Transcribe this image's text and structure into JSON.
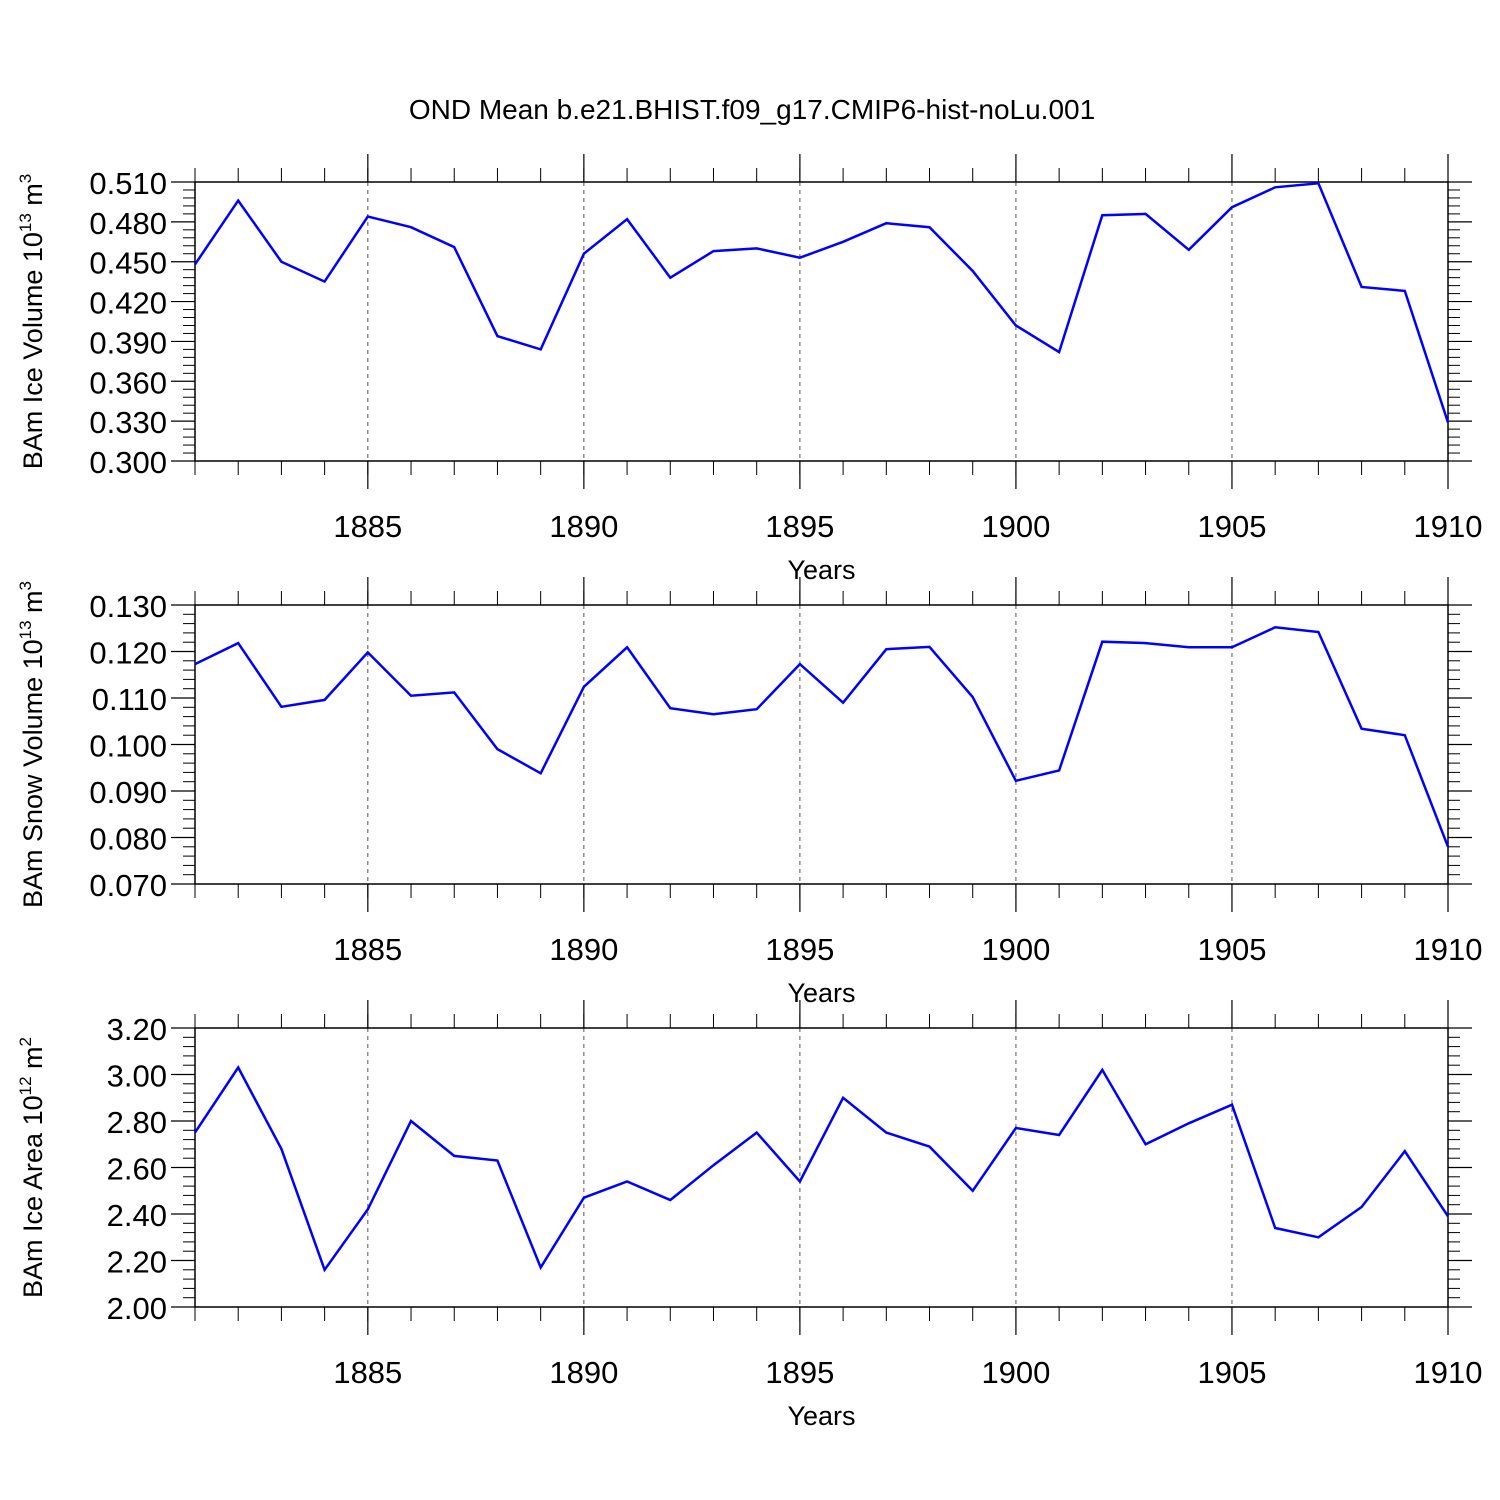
{
  "title": "OND Mean b.e21.BHIST.f09_g17.CMIP6-hist-noLu.001",
  "colors": {
    "line": "#0000ff",
    "axis": "#000000",
    "grid": "#555555"
  },
  "chart_data": [
    {
      "type": "line",
      "ylabel_main": "BAm Ice Volume 10",
      "ylabel_exp": "13",
      "ylabel_unit": "m",
      "ylabel_unit_exp": "3",
      "xlabel": "Years",
      "xlim": [
        1881,
        1910
      ],
      "ylim": [
        0.3,
        0.51
      ],
      "yticks": [
        "0.300",
        "0.330",
        "0.360",
        "0.390",
        "0.420",
        "0.450",
        "0.480",
        "0.510"
      ],
      "ytick_values": [
        0.3,
        0.33,
        0.36,
        0.39,
        0.42,
        0.45,
        0.48,
        0.51
      ],
      "xticks": [
        "1885",
        "1890",
        "1895",
        "1900",
        "1905",
        "1910"
      ],
      "xtick_values": [
        1885,
        1890,
        1895,
        1900,
        1905,
        1910
      ],
      "x": [
        1881,
        1882,
        1883,
        1884,
        1885,
        1886,
        1887,
        1888,
        1889,
        1890,
        1891,
        1892,
        1893,
        1894,
        1895,
        1896,
        1897,
        1898,
        1899,
        1900,
        1901,
        1902,
        1903,
        1904,
        1905,
        1906,
        1907,
        1908,
        1909,
        1910
      ],
      "series": [
        {
          "name": "Ice Volume",
          "values": [
            0.448,
            0.496,
            0.45,
            0.435,
            0.484,
            0.476,
            0.461,
            0.394,
            0.384,
            0.456,
            0.482,
            0.438,
            0.458,
            0.46,
            0.453,
            0.465,
            0.479,
            0.476,
            0.443,
            0.402,
            0.382,
            0.485,
            0.486,
            0.459,
            0.491,
            0.506,
            0.509,
            0.431,
            0.428,
            0.329
          ]
        }
      ]
    },
    {
      "type": "line",
      "ylabel_main": "BAm Snow Volume 10",
      "ylabel_exp": "13",
      "ylabel_unit": "m",
      "ylabel_unit_exp": "3",
      "xlabel": "Years",
      "xlim": [
        1881,
        1910
      ],
      "ylim": [
        0.07,
        0.13
      ],
      "yticks": [
        "0.070",
        "0.080",
        "0.090",
        "0.100",
        "0.110",
        "0.120",
        "0.130"
      ],
      "ytick_values": [
        0.07,
        0.08,
        0.09,
        0.1,
        0.11,
        0.12,
        0.13
      ],
      "xticks": [
        "1885",
        "1890",
        "1895",
        "1900",
        "1905",
        "1910"
      ],
      "xtick_values": [
        1885,
        1890,
        1895,
        1900,
        1905,
        1910
      ],
      "x": [
        1881,
        1882,
        1883,
        1884,
        1885,
        1886,
        1887,
        1888,
        1889,
        1890,
        1891,
        1892,
        1893,
        1894,
        1895,
        1896,
        1897,
        1898,
        1899,
        1900,
        1901,
        1902,
        1903,
        1904,
        1905,
        1906,
        1907,
        1908,
        1909,
        1910
      ],
      "series": [
        {
          "name": "Snow Volume",
          "values": [
            0.1173,
            0.1218,
            0.1081,
            0.1096,
            0.1198,
            0.1105,
            0.1112,
            0.099,
            0.0938,
            0.1124,
            0.1209,
            0.1078,
            0.1065,
            0.1076,
            0.1173,
            0.109,
            0.1205,
            0.121,
            0.1102,
            0.0922,
            0.0944,
            0.1221,
            0.1218,
            0.1209,
            0.1209,
            0.1252,
            0.1242,
            0.1034,
            0.102,
            0.078
          ]
        }
      ]
    },
    {
      "type": "line",
      "ylabel_main": "BAm Ice Area 10",
      "ylabel_exp": "12",
      "ylabel_unit": "m",
      "ylabel_unit_exp": "2",
      "xlabel": "Years",
      "xlim": [
        1881,
        1910
      ],
      "ylim": [
        2.0,
        3.2
      ],
      "yticks": [
        "2.00",
        "2.20",
        "2.40",
        "2.60",
        "2.80",
        "3.00",
        "3.20"
      ],
      "ytick_values": [
        2.0,
        2.2,
        2.4,
        2.6,
        2.8,
        3.0,
        3.2
      ],
      "xticks": [
        "1885",
        "1890",
        "1895",
        "1900",
        "1905",
        "1910"
      ],
      "xtick_values": [
        1885,
        1890,
        1895,
        1900,
        1905,
        1910
      ],
      "x": [
        1881,
        1882,
        1883,
        1884,
        1885,
        1886,
        1887,
        1888,
        1889,
        1890,
        1891,
        1892,
        1893,
        1894,
        1895,
        1896,
        1897,
        1898,
        1899,
        1900,
        1901,
        1902,
        1903,
        1904,
        1905,
        1906,
        1907,
        1908,
        1909,
        1910
      ],
      "series": [
        {
          "name": "Ice Area",
          "values": [
            2.75,
            3.03,
            2.68,
            2.16,
            2.42,
            2.8,
            2.65,
            2.63,
            2.17,
            2.47,
            2.54,
            2.46,
            2.61,
            2.75,
            2.54,
            2.9,
            2.75,
            2.69,
            2.5,
            2.77,
            2.74,
            3.02,
            2.7,
            2.79,
            2.87,
            2.34,
            2.3,
            2.43,
            2.67,
            2.39
          ]
        }
      ]
    }
  ]
}
